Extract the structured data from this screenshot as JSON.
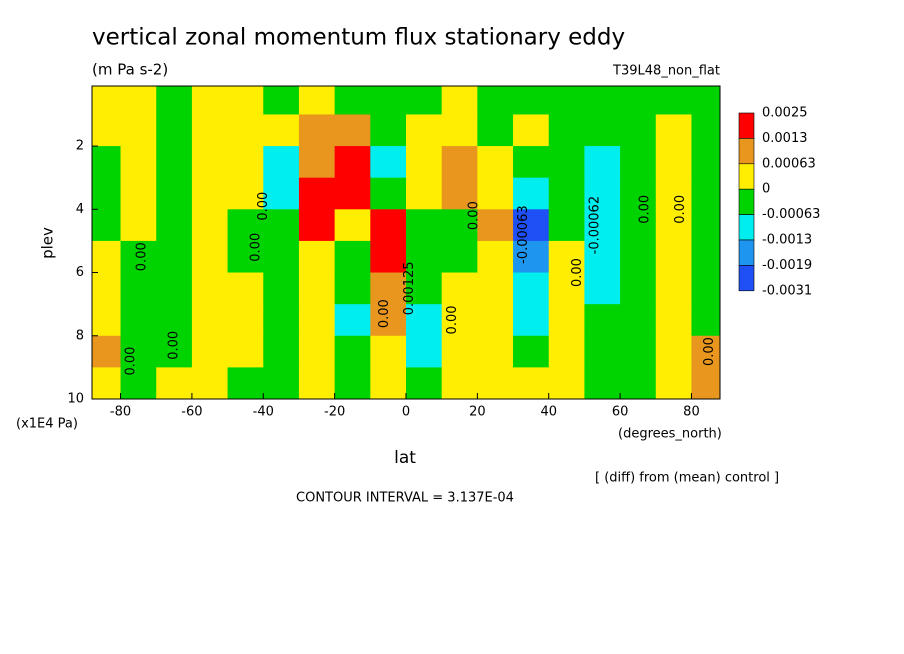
{
  "chart_data": {
    "type": "contour",
    "title": "vertical zonal momentum flux stationary eddy",
    "subtitle": "(m Pa s-2)",
    "run_label": "T39L48_non_flat",
    "x_label": "lat",
    "x_units": "(degrees_north)",
    "y_label": "plev",
    "y_units": "(x1E4 Pa)",
    "note": "[ (diff) from (mean) control ]",
    "contour_interval": "CONTOUR INTERVAL = 3.137E-04",
    "xlim": [
      -88,
      88
    ],
    "ylim": [
      10,
      0.1
    ],
    "xticks": [
      -80,
      -60,
      -40,
      -20,
      0,
      20,
      40,
      60,
      80
    ],
    "yticks": [
      2,
      4,
      6,
      8,
      10
    ],
    "levels": [
      0.0025,
      0.0013,
      0.00063,
      0,
      -0.00063,
      -0.0013,
      -0.0019,
      -0.0031
    ],
    "colors": [
      "#ff0000",
      "#e8961e",
      "#ffee00",
      "#00d400",
      "#00eeee",
      "#1e96f0",
      "#1e50f5"
    ],
    "lat": [
      -85,
      -75,
      -65,
      -55,
      -45,
      -35,
      -25,
      -15,
      -5,
      5,
      15,
      25,
      35,
      45,
      55,
      65,
      75,
      85
    ],
    "plev": [
      0.5,
      1.5,
      2.5,
      3.5,
      4.5,
      5.5,
      6.5,
      7.5,
      8.5,
      9.5
    ],
    "field": [
      [
        0.0002,
        0.0003,
        -0.0002,
        0.0002,
        0.0003,
        -0.0002,
        0.0002,
        -0.0002,
        -0.0003,
        -0.0002,
        0.0002,
        -0.0002,
        -0.0002,
        -0.0003,
        -0.0002,
        -0.0002,
        -0.0003,
        -0.0002
      ],
      [
        0.0002,
        0.0003,
        -0.0002,
        0.0002,
        0.0003,
        0.0002,
        0.0008,
        0.0008,
        -0.0004,
        0.0003,
        0.0004,
        -0.0002,
        0.0002,
        -0.0002,
        -0.0002,
        -0.0002,
        0.0002,
        -0.0002
      ],
      [
        -0.0002,
        0.0003,
        -0.0002,
        0.0002,
        0.0002,
        -0.0008,
        0.001,
        0.0015,
        -0.0009,
        0.0002,
        0.0007,
        0.0002,
        -0.0004,
        -0.0002,
        -0.0008,
        -0.0002,
        0.0002,
        -0.0002
      ],
      [
        -0.0002,
        0.0002,
        -0.0003,
        0.0002,
        0.0002,
        -0.001,
        0.0028,
        0.002,
        -0.0004,
        0.0003,
        0.0008,
        0.0002,
        -0.0012,
        -0.0003,
        -0.0012,
        -0.0002,
        0.0002,
        -0.0002
      ],
      [
        -0.0002,
        0.0002,
        -0.0002,
        0.0002,
        -0.0002,
        -0.0004,
        0.0016,
        0.0004,
        0.003,
        -0.0003,
        -0.0002,
        0.001,
        -0.0022,
        -0.0002,
        -0.0012,
        -0.0002,
        0.0002,
        -0.0002
      ],
      [
        0.0002,
        -0.0002,
        -0.0002,
        0.0002,
        -0.0002,
        -0.0002,
        0.0003,
        -0.0002,
        0.0018,
        -0.0004,
        -0.0002,
        0.0003,
        -0.0015,
        0.0002,
        -0.001,
        -0.0002,
        0.0002,
        -0.0002
      ],
      [
        0.0002,
        -0.0002,
        -0.0002,
        0.0002,
        0.0002,
        -0.0002,
        0.0002,
        -0.0002,
        0.0009,
        -0.0003,
        0.0002,
        0.0002,
        -0.0012,
        0.0002,
        -0.0008,
        -0.0002,
        0.0002,
        -0.0002
      ],
      [
        0.0002,
        -0.0002,
        -0.0002,
        0.0002,
        0.0002,
        -0.0002,
        0.0002,
        -0.0008,
        0.0007,
        -0.0008,
        0.0002,
        0.0002,
        -0.0007,
        0.0002,
        -0.0003,
        -0.0002,
        0.0002,
        -0.0002
      ],
      [
        0.0007,
        -0.0002,
        -0.0002,
        0.0002,
        0.0002,
        -0.0002,
        0.0002,
        -0.0002,
        0.0004,
        -0.0008,
        0.0002,
        0.0002,
        -0.0004,
        0.0002,
        -0.0003,
        -0.0002,
        0.0002,
        0.0007
      ],
      [
        0.0002,
        -0.0002,
        0.0002,
        0.0002,
        -0.0002,
        -0.0002,
        0.0002,
        -0.0002,
        0.0002,
        -0.0002,
        0.0002,
        0.0002,
        0.0002,
        0.0002,
        -0.0002,
        -0.0002,
        0.0002,
        0.0007
      ]
    ],
    "contour_labels": [
      {
        "label": "0.00",
        "lat": -40,
        "plev": 3.9
      },
      {
        "label": "0.00",
        "lat": -74,
        "plev": 5.5
      },
      {
        "label": "0.00",
        "lat": -42,
        "plev": 5.2
      },
      {
        "label": "0.00",
        "lat": -77,
        "plev": 8.8
      },
      {
        "label": "0.00",
        "lat": -65,
        "plev": 8.3
      },
      {
        "label": "0.00",
        "lat": -6,
        "plev": 7.3
      },
      {
        "label": "0.00",
        "lat": 13,
        "plev": 7.5
      },
      {
        "label": "0.00",
        "lat": 19,
        "plev": 4.2
      },
      {
        "label": "0.00",
        "lat": 48,
        "plev": 6.0
      },
      {
        "label": "0.00",
        "lat": 67,
        "plev": 4.0
      },
      {
        "label": "0.00",
        "lat": 77,
        "plev": 4.0
      },
      {
        "label": "0.00",
        "lat": 85,
        "plev": 8.5
      },
      {
        "label": "-0.00062",
        "lat": 53,
        "plev": 4.5
      },
      {
        "label": "0.00125",
        "lat": 1,
        "plev": 6.5
      },
      {
        "label": "-0.00063",
        "lat": 33,
        "plev": 4.8
      }
    ]
  }
}
